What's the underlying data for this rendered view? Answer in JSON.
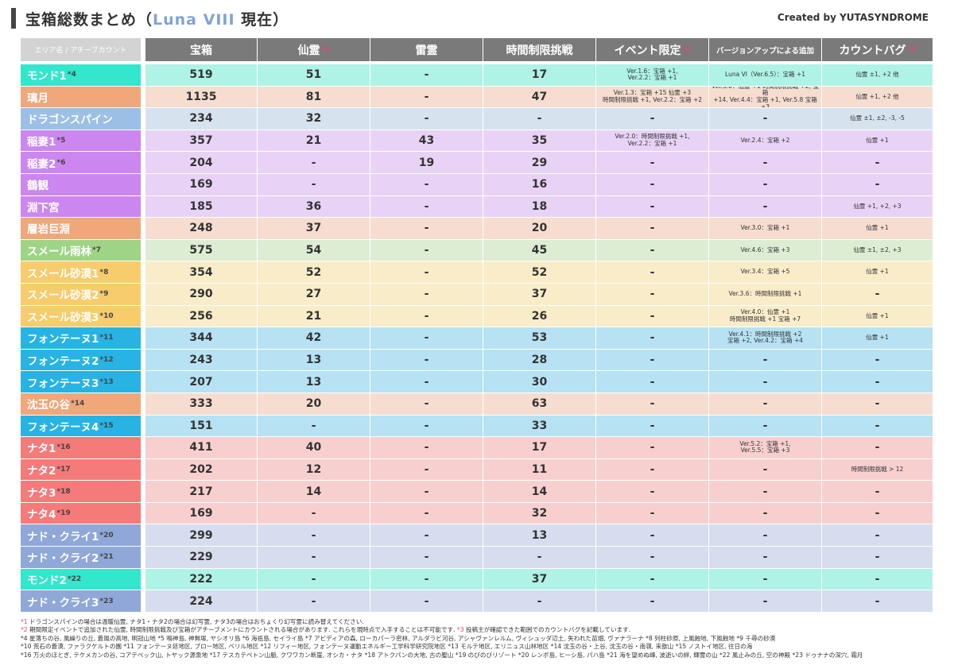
{
  "title": {
    "prefix": "宝箱総数まとめ（",
    "highlight": "Luna VIII",
    "suffix": " 現在）"
  },
  "credit": "Created by YUTASYNDROME",
  "headers": [
    {
      "key": "area",
      "label": "エリア名 / アチーブカウント",
      "mark": ""
    },
    {
      "key": "chest",
      "label": "宝箱",
      "mark": ""
    },
    {
      "key": "sen",
      "label": "仙霊",
      "mark": "*1"
    },
    {
      "key": "rai",
      "label": "雷霊",
      "mark": ""
    },
    {
      "key": "time",
      "label": "時間制限挑戦",
      "mark": ""
    },
    {
      "key": "ev",
      "label": "イベント限定",
      "mark": "*2"
    },
    {
      "key": "ver",
      "label": "バージョンアップによる追加",
      "mark": ""
    },
    {
      "key": "bug",
      "label": "カウントバグ",
      "mark": "*3"
    }
  ],
  "rows": [
    {
      "area": "モンド1",
      "note": "*4",
      "color": "#33e6cc",
      "bg": "#aef3e5",
      "chest": "519",
      "sen": "51",
      "rai": "-",
      "time": "17",
      "ev": "Ver.1.6：宝箱 +1,\nVer.2.2：宝箱 +1",
      "ver": "Luna VI（Ver.6.5）：宝箱 +1",
      "bug": "仙霊 ±1, +2 他"
    },
    {
      "area": "璃月",
      "note": "",
      "color": "#f0a77a",
      "bg": "#f6ddd0",
      "chest": "1135",
      "sen": "81",
      "rai": "-",
      "time": "47",
      "ev": "Ver.1.3：宝箱 +15 仙霊 +3\n時間制限挑戦 +1, Ver.2.2：宝箱 +2",
      "ver": "Ver.3.0：仙霊 +1 時間制限挑戦 +2, 宝箱\n+14, Ver.4.4：宝箱 +1, Ver.5.8 宝箱 +3",
      "bug": "仙霊 +1, +2 他"
    },
    {
      "area": "ドラゴンスパイン",
      "note": "",
      "color": "#9cbfe5",
      "bg": "#d6e3ef",
      "chest": "234",
      "sen": "32",
      "rai": "-",
      "time": "-",
      "ev": "-",
      "ver": "-",
      "bug": "仙霊 ±1, ±2, -3, -5"
    },
    {
      "area": "稲妻1",
      "note": "*5",
      "color": "#cb86ef",
      "bg": "#e8d3f6",
      "chest": "357",
      "sen": "21",
      "rai": "43",
      "time": "35",
      "ev": "Ver.2.0：時間制限挑戦 +1,\nVer.2.2：宝箱 +1",
      "ver": "Ver.2.4：宝箱 +2",
      "bug": "仙霊 +1"
    },
    {
      "area": "稲妻2",
      "note": "*6",
      "color": "#cb86ef",
      "bg": "#e8d3f6",
      "chest": "204",
      "sen": "-",
      "rai": "19",
      "time": "29",
      "ev": "-",
      "ver": "-",
      "bug": "-"
    },
    {
      "area": "鶴観",
      "note": "",
      "color": "#cb86ef",
      "bg": "#e8d3f6",
      "chest": "169",
      "sen": "-",
      "rai": "-",
      "time": "16",
      "ev": "-",
      "ver": "-",
      "bug": "-"
    },
    {
      "area": "淵下宮",
      "note": "",
      "color": "#cb86ef",
      "bg": "#e8d3f6",
      "chest": "185",
      "sen": "36",
      "rai": "-",
      "time": "18",
      "ev": "-",
      "ver": "-",
      "bug": "仙霊 +1, +2, +3"
    },
    {
      "area": "層岩巨淵",
      "note": "",
      "color": "#f0a77a",
      "bg": "#f6ddd0",
      "chest": "248",
      "sen": "37",
      "rai": "-",
      "time": "20",
      "ev": "-",
      "ver": "Ver.3.0：宝箱 +1",
      "bug": "仙霊 +1"
    },
    {
      "area": "スメール雨林",
      "note": "*7",
      "color": "#9fd486",
      "bg": "#dcedd3",
      "chest": "575",
      "sen": "54",
      "rai": "-",
      "time": "45",
      "ev": "-",
      "ver": "Ver.4.6：宝箱 +3",
      "bug": "仙霊 ±1, ±2, +3"
    },
    {
      "area": "スメール砂漠1",
      "note": "*8",
      "color": "#f7cc6c",
      "bg": "#f9ecc9",
      "chest": "354",
      "sen": "52",
      "rai": "-",
      "time": "52",
      "ev": "-",
      "ver": "Ver.3.4：宝箱 +5",
      "bug": "仙霊 +1"
    },
    {
      "area": "スメール砂漠2",
      "note": "*9",
      "color": "#f7cc6c",
      "bg": "#f9ecc9",
      "chest": "290",
      "sen": "27",
      "rai": "-",
      "time": "37",
      "ev": "-",
      "ver": "Ver.3.6：時間制限挑戦 +1",
      "bug": "-"
    },
    {
      "area": "スメール砂漠3",
      "note": "*10",
      "color": "#f7cc6c",
      "bg": "#f9ecc9",
      "chest": "256",
      "sen": "21",
      "rai": "-",
      "time": "26",
      "ev": "-",
      "ver": "Ver.4.0：仙霊 +1\n時間制限挑戦 +1 宝箱 +7",
      "bug": "仙霊 +1"
    },
    {
      "area": "フォンテーヌ1",
      "note": "*11",
      "color": "#27b3e3",
      "bg": "#b6e2f3",
      "chest": "344",
      "sen": "42",
      "rai": "-",
      "time": "53",
      "ev": "-",
      "ver": "Ver.4.1：時間制限挑戦 +2\n宝箱 +2, Ver.4.2：宝箱 +4",
      "bug": "仙霊 +1"
    },
    {
      "area": "フォンテーヌ2",
      "note": "*12",
      "color": "#27b3e3",
      "bg": "#b6e2f3",
      "chest": "243",
      "sen": "13",
      "rai": "-",
      "time": "28",
      "ev": "-",
      "ver": "-",
      "bug": "-"
    },
    {
      "area": "フォンテーヌ3",
      "note": "*13",
      "color": "#27b3e3",
      "bg": "#b6e2f3",
      "chest": "207",
      "sen": "13",
      "rai": "-",
      "time": "30",
      "ev": "-",
      "ver": "-",
      "bug": "-"
    },
    {
      "area": "沈玉の谷",
      "note": "*14",
      "color": "#f0a77a",
      "bg": "#f6ddd0",
      "chest": "333",
      "sen": "20",
      "rai": "-",
      "time": "63",
      "ev": "-",
      "ver": "-",
      "bug": "-"
    },
    {
      "area": "フォンテーヌ4",
      "note": "*15",
      "color": "#27b3e3",
      "bg": "#b6e2f3",
      "chest": "151",
      "sen": "-",
      "rai": "-",
      "time": "33",
      "ev": "-",
      "ver": "-",
      "bug": "-"
    },
    {
      "area": "ナタ1",
      "note": "*16",
      "color": "#f57a7a",
      "bg": "#f8cfcf",
      "chest": "411",
      "sen": "40",
      "rai": "-",
      "time": "17",
      "ev": "-",
      "ver": "Ver.5.2：宝箱 +1,\nVer.5.5：宝箱 +3",
      "bug": "-"
    },
    {
      "area": "ナタ2",
      "note": "*17",
      "color": "#f57a7a",
      "bg": "#f8cfcf",
      "chest": "202",
      "sen": "12",
      "rai": "-",
      "time": "11",
      "ev": "-",
      "ver": "-",
      "bug": "時間制限挑戦 > 12"
    },
    {
      "area": "ナタ3",
      "note": "*18",
      "color": "#f57a7a",
      "bg": "#f8cfcf",
      "chest": "217",
      "sen": "14",
      "rai": "-",
      "time": "14",
      "ev": "-",
      "ver": "-",
      "bug": "-"
    },
    {
      "area": "ナタ4",
      "note": "*19",
      "color": "#f57a7a",
      "bg": "#f8cfcf",
      "chest": "169",
      "sen": "-",
      "rai": "-",
      "time": "32",
      "ev": "-",
      "ver": "-",
      "bug": "-"
    },
    {
      "area": "ナド・クライ1",
      "note": "*20",
      "color": "#8fa8d8",
      "bg": "#d5ddee",
      "chest": "299",
      "sen": "-",
      "rai": "-",
      "time": "13",
      "ev": "-",
      "ver": "-",
      "bug": "-"
    },
    {
      "area": "ナド・クライ2",
      "note": "*21",
      "color": "#8fa8d8",
      "bg": "#d5ddee",
      "chest": "229",
      "sen": "-",
      "rai": "-",
      "time": "-",
      "ev": "-",
      "ver": "-",
      "bug": "-"
    },
    {
      "area": "モンド2",
      "note": "*22",
      "color": "#33e6cc",
      "bg": "#aef3e5",
      "chest": "222",
      "sen": "-",
      "rai": "-",
      "time": "37",
      "ev": "-",
      "ver": "-",
      "bug": "-"
    },
    {
      "area": "ナド・クライ3",
      "note": "*23",
      "color": "#8fa8d8",
      "bg": "#d5ddee",
      "chest": "224",
      "sen": "-",
      "rai": "-",
      "time": "-",
      "ev": "-",
      "ver": "-",
      "bug": "-"
    }
  ],
  "footnotes": [
    {
      "mark": "*1",
      "text": " ドラゴンスパインの場合は温暖仙霊, ナタ1・ナタ2の場合は幻写霊, ナタ3の場合はおちょくり幻写霊に読み替えてください."
    },
    {
      "mark": "*2",
      "text": " 期間限定イベントで追加された仙霊, 時間制限挑戦及び宝箱がアチーブメントにカウントされる場合があります. これらを現時点で入手することは不可能です.  ",
      "mark2": "*3",
      "text2": " 投稿主が確認できた範囲でのカウントバグを記載しています."
    },
    {
      "mark": "",
      "text": "*4 星落ちの谷, 風繰りの丘, 蒼風の高地, 明冠山地  *5 鳴神島, 神無塚, ヤシオリ島  *6 海祇島, セイライ島  *7 アビディアの森, ローカパーラ密林, アルダラビ河谷, アシャヴァンレルム, ヴィシュッダ辺土, 失われた苗畑, ヴァナラーナ  *8 列柱砂原, 上風蝕地, 下風蝕地  *9 千尋の砂漠"
    },
    {
      "mark": "",
      "text": "*10 荒石の蒼漠, ファラクケルトの園  *11 フォンテーヌ廷地区, ブロー地区, ベリル地区  *12 リフィー地区, フォンテーヌ運動エネルギー工学科学研究院地区  *13 モルテ地区, エリニュス山林地区  *14 沈玉の谷・上谷, 沈玉の谷・南嶺, 来歆山  *15 ノストイ地区, 往日の海"
    },
    {
      "mark": "",
      "text": "*16 万火のほとぎ, テケメカンの谷, コアテペック山, トヤック源泉地  *17 テスカテペトン山脈, クワワカン断崖, オシカ・ナタ  *18 アトクパンの大地, 古の聖山  *19 のびのびリゾート  *20 レンボ島, ヒーシ島, パハ島  *21 海を望めぬ峰, 波逝いの絆, 輝霊の山  *22 風止みの丘, 空の神殿  *23 ドゥナナの深穴, 霜月"
    }
  ]
}
